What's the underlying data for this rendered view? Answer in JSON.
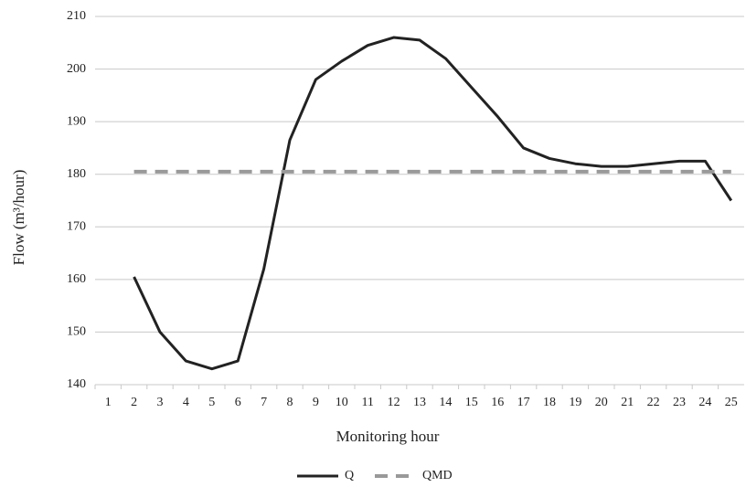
{
  "chart_data": {
    "type": "line",
    "x_label": "Monitoring hour",
    "y_label": "Flow (m³/hour)",
    "categories": [
      "1",
      "2",
      "3",
      "4",
      "5",
      "6",
      "7",
      "8",
      "9",
      "10",
      "11",
      "12",
      "13",
      "14",
      "15",
      "16",
      "17",
      "18",
      "19",
      "20",
      "21",
      "22",
      "23",
      "24",
      "25"
    ],
    "series": [
      {
        "name": "Q",
        "color": "#222222",
        "dash": false,
        "values": [
          null,
          160.5,
          150,
          144.5,
          143,
          144.5,
          162,
          186.5,
          198,
          201.5,
          204.5,
          206,
          205.5,
          202,
          196.5,
          191,
          185,
          183,
          182,
          181.5,
          181.5,
          182,
          182.5,
          182.5,
          175
        ]
      },
      {
        "name": "QMD",
        "color": "#999999",
        "dash": true,
        "values": [
          null,
          180.5,
          180.5,
          180.5,
          180.5,
          180.5,
          180.5,
          180.5,
          180.5,
          180.5,
          180.5,
          180.5,
          180.5,
          180.5,
          180.5,
          180.5,
          180.5,
          180.5,
          180.5,
          180.5,
          180.5,
          180.5,
          180.5,
          180.5,
          180.5
        ]
      }
    ],
    "ylim": [
      140,
      210
    ],
    "yticks": [
      140,
      150,
      160,
      170,
      180,
      190,
      200,
      210
    ],
    "grid": true,
    "legend": "bottom"
  }
}
